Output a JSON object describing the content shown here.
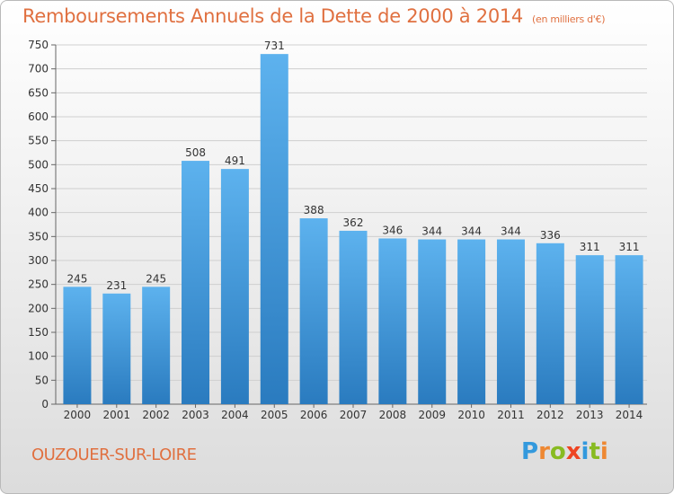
{
  "title": "Remboursements Annuels de la Dette de 2000 à 2014",
  "unit": "(en milliers d'€)",
  "city": "OUZOUER-SUR-LOIRE",
  "logo": {
    "letters": [
      "P",
      "r",
      "o",
      "x",
      "i",
      "t",
      "i"
    ],
    "colors": [
      "#3399dd",
      "#ee8833",
      "#88bb22",
      "#ee4422",
      "#3399dd",
      "#88bb22",
      "#ee8833"
    ]
  },
  "colors": {
    "bar_top": "#5db2ee",
    "bar_bottom": "#2a7bbf",
    "title": "#e07040",
    "grid": "#cfcfcf"
  },
  "chart_data": {
    "type": "bar",
    "categories": [
      "2000",
      "2001",
      "2002",
      "2003",
      "2004",
      "2005",
      "2006",
      "2007",
      "2008",
      "2009",
      "2010",
      "2011",
      "2012",
      "2013",
      "2014"
    ],
    "values": [
      245,
      231,
      245,
      508,
      491,
      731,
      388,
      362,
      346,
      344,
      344,
      344,
      336,
      311,
      311
    ],
    "ylim": [
      0,
      750
    ],
    "yticks": [
      0,
      50,
      100,
      150,
      200,
      250,
      300,
      350,
      400,
      450,
      500,
      550,
      600,
      650,
      700,
      750
    ],
    "grid": true,
    "data_labels": true
  }
}
